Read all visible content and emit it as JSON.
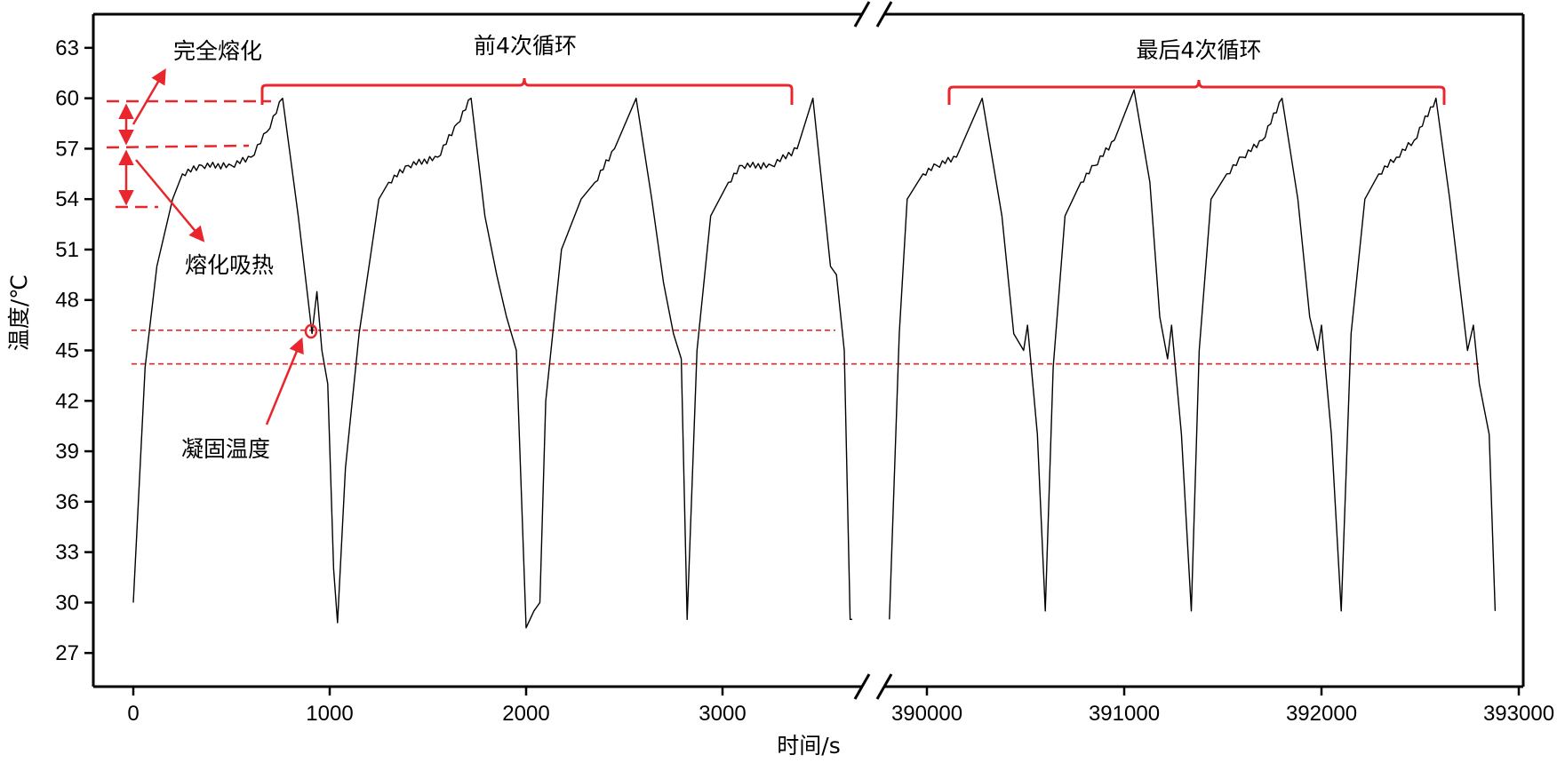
{
  "chart_data": {
    "type": "line",
    "xlabel": "时间/s",
    "ylabel": "温度/℃",
    "y_ticks": [
      "27",
      "30",
      "33",
      "36",
      "39",
      "42",
      "45",
      "48",
      "51",
      "54",
      "57",
      "60",
      "63"
    ],
    "x_ticks_left": [
      "0",
      "1000",
      "2000",
      "3000"
    ],
    "x_ticks_right": [
      "390000",
      "391000",
      "392000",
      "393000"
    ],
    "axis_break": "x",
    "ylim": [
      25,
      65
    ],
    "xlim_left": [
      -200,
      3700
    ],
    "xlim_right": [
      389700,
      393000
    ],
    "grid": false,
    "colors": {
      "line": "#000000",
      "annotation": "#e8262b"
    },
    "series": [
      {
        "values": {
          "left": [
            [
              0,
              30
            ],
            [
              60,
              44
            ],
            [
              120,
              50
            ],
            [
              200,
              54
            ],
            [
              250,
              55.5
            ],
            [
              350,
              56
            ],
            [
              500,
              56
            ],
            [
              600,
              56.5
            ],
            [
              680,
              58
            ],
            [
              760,
              60
            ],
            [
              840,
              53
            ],
            [
              890,
              48
            ],
            [
              910,
              46
            ],
            [
              935,
              48.5
            ],
            [
              960,
              45
            ],
            [
              990,
              43
            ],
            [
              1020,
              32
            ],
            [
              1040,
              28.8
            ],
            [
              1080,
              38
            ],
            [
              1150,
              46
            ],
            [
              1250,
              54
            ],
            [
              1300,
              55
            ],
            [
              1400,
              56
            ],
            [
              1550,
              56.5
            ],
            [
              1650,
              58.5
            ],
            [
              1720,
              60
            ],
            [
              1790,
              53
            ],
            [
              1850,
              49.5
            ],
            [
              1900,
              47
            ],
            [
              1950,
              45
            ],
            [
              2000,
              28.5
            ],
            [
              2040,
              29.5
            ],
            [
              2070,
              30
            ],
            [
              2100,
              42
            ],
            [
              2180,
              51
            ],
            [
              2280,
              54
            ],
            [
              2350,
              55
            ],
            [
              2450,
              57
            ],
            [
              2560,
              60
            ],
            [
              2640,
              54
            ],
            [
              2700,
              49
            ],
            [
              2750,
              46
            ],
            [
              2790,
              44.5
            ],
            [
              2820,
              29
            ],
            [
              2870,
              45
            ],
            [
              2940,
              53
            ],
            [
              3030,
              55
            ],
            [
              3100,
              56
            ],
            [
              3250,
              56
            ],
            [
              3380,
              57
            ],
            [
              3460,
              60
            ],
            [
              3550,
              50
            ],
            [
              3580,
              49.5
            ],
            [
              3620,
              45
            ],
            [
              3650,
              29
            ],
            [
              3660,
              29
            ]
          ],
          "right": [
            [
              389810,
              29
            ],
            [
              389860,
              46
            ],
            [
              389900,
              54
            ],
            [
              389980,
              55.5
            ],
            [
              390050,
              56
            ],
            [
              390150,
              56.5
            ],
            [
              390280,
              60
            ],
            [
              390380,
              53
            ],
            [
              390440,
              46
            ],
            [
              390490,
              45
            ],
            [
              390510,
              46.5
            ],
            [
              390560,
              40
            ],
            [
              390600,
              29.5
            ],
            [
              390640,
              44
            ],
            [
              390700,
              53
            ],
            [
              390780,
              55
            ],
            [
              390850,
              56
            ],
            [
              390950,
              57.5
            ],
            [
              391050,
              60.5
            ],
            [
              391130,
              55
            ],
            [
              391180,
              47
            ],
            [
              391220,
              44.5
            ],
            [
              391240,
              46.5
            ],
            [
              391290,
              40
            ],
            [
              391340,
              29.5
            ],
            [
              391380,
              45
            ],
            [
              391440,
              54
            ],
            [
              391520,
              55.5
            ],
            [
              391600,
              56.5
            ],
            [
              391700,
              57.5
            ],
            [
              391800,
              60
            ],
            [
              391880,
              54
            ],
            [
              391940,
              47
            ],
            [
              391980,
              45
            ],
            [
              392000,
              46.5
            ],
            [
              392050,
              40
            ],
            [
              392100,
              29.5
            ],
            [
              392150,
              46
            ],
            [
              392220,
              54
            ],
            [
              392290,
              55.5
            ],
            [
              392380,
              56.5
            ],
            [
              392470,
              57.5
            ],
            [
              392580,
              60
            ],
            [
              392650,
              54
            ],
            [
              392720,
              47
            ],
            [
              392740,
              45
            ],
            [
              392770,
              46.5
            ],
            [
              392800,
              43
            ],
            [
              392850,
              40
            ],
            [
              392880,
              29.5
            ]
          ]
        }
      }
    ],
    "reference_lines_y": [
      46.2,
      44.2
    ],
    "annotations": [
      {
        "text": "完全熔化"
      },
      {
        "text": "熔化吸热"
      },
      {
        "text": "凝固温度"
      },
      {
        "text": "前4次循环"
      },
      {
        "text": "最后4次循环"
      }
    ]
  }
}
